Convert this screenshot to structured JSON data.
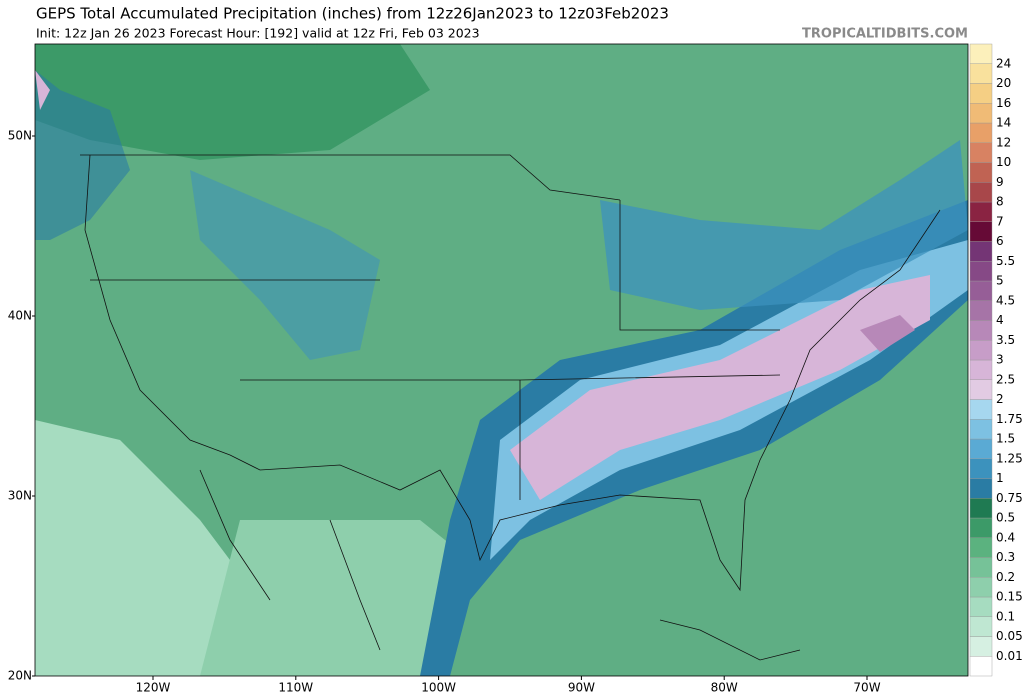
{
  "header": {
    "title": "GEPS Total Accumulated Precipitation (inches) from 12z26Jan2023 to 12z03Feb2023",
    "subtitle": "Init: 12z Jan 26 2023   Forecast Hour: [192]   valid at 12z Fri, Feb 03 2023",
    "watermark": "TROPICALTIDBITS.COM"
  },
  "map": {
    "lat_labels": [
      "50N",
      "40N",
      "30N",
      "20N"
    ],
    "lon_labels": [
      "120W",
      "110W",
      "100W",
      "90W",
      "80W",
      "70W"
    ]
  },
  "colorbar": {
    "levels": [
      0.01,
      0.05,
      0.1,
      0.15,
      0.2,
      0.3,
      0.4,
      0.5,
      0.75,
      1,
      1.25,
      1.5,
      1.75,
      2,
      2.5,
      3,
      3.5,
      4,
      4.5,
      5,
      5.5,
      6,
      7,
      8,
      9,
      10,
      12,
      14,
      16,
      20,
      24
    ],
    "colors": [
      "#ffffff",
      "#d6f0e2",
      "#bfe7d2",
      "#a6dcc0",
      "#8ecfac",
      "#76c298",
      "#5bb27f",
      "#3c9a68",
      "#1f7a52",
      "#2a7ca4",
      "#3c92bd",
      "#5aaad4",
      "#7dc1e2",
      "#a6d7ef",
      "#e2cbe3",
      "#d7b5d8",
      "#c79dc8",
      "#b788b8",
      "#a674a7",
      "#965e97",
      "#864986",
      "#743575",
      "#660a36",
      "#8a2342",
      "#a8474a",
      "#c06353",
      "#d88262",
      "#e8a068",
      "#f0bb76",
      "#f5cf84",
      "#f9e19d",
      "#fcf0bb"
    ]
  }
}
